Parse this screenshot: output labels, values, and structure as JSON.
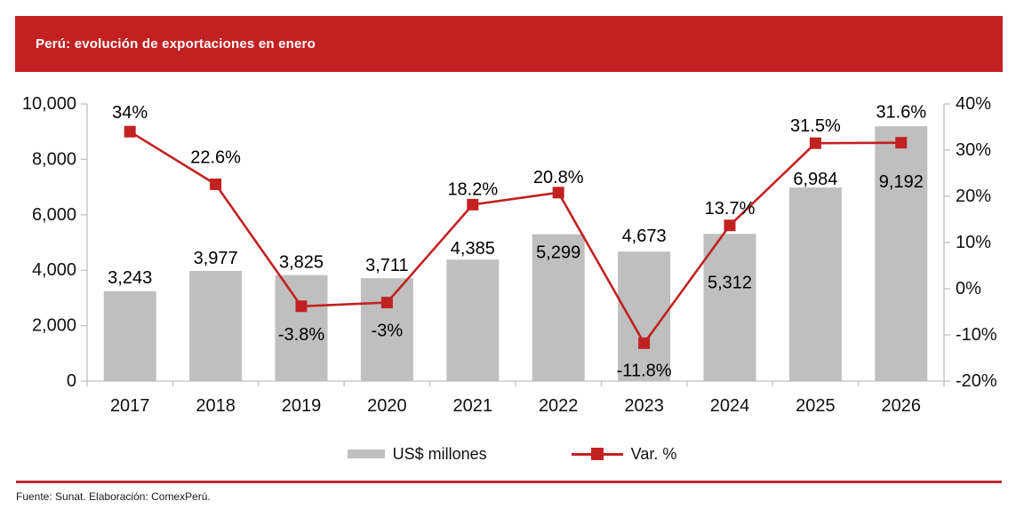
{
  "header": {
    "title": "Perú: evolución de exportaciones en enero"
  },
  "legend": {
    "bars_label": "US$ millones",
    "line_label": "Var. %"
  },
  "footer": {
    "source": "Fuente: Sunat. Elaboración: ComexPerú."
  },
  "colors": {
    "accent_red": "#c22122",
    "footer_rule_red": "#c22b35",
    "bar_gray": "#bfbfbf",
    "axis_gray": "#c0c0c0",
    "text_dark": "#111111"
  },
  "chart_data": {
    "type": "bar",
    "subtype": "bar-line-combo",
    "title": "Perú: evolución de exportaciones en enero",
    "categories": [
      "2017",
      "2018",
      "2019",
      "2020",
      "2021",
      "2022",
      "2023",
      "2024",
      "2025",
      "2026"
    ],
    "series": [
      {
        "name": "US$ millones",
        "type": "bar",
        "axis": "left",
        "values": [
          3243,
          3977,
          3825,
          3711,
          4385,
          5299,
          4673,
          5312,
          6984,
          9192
        ],
        "labels": [
          "3,243",
          "3,977",
          "3,825",
          "3,711",
          "4,385",
          "5,299",
          "4,673",
          "5,312",
          "6,984",
          "9,192"
        ]
      },
      {
        "name": "Var. %",
        "type": "line",
        "axis": "right",
        "values": [
          34,
          22.6,
          -3.8,
          -3,
          18.2,
          20.8,
          -11.8,
          13.7,
          31.5,
          31.6
        ],
        "labels": [
          "34%",
          "22.6%",
          "-3.8%",
          "-3%",
          "18.2%",
          "20.8%",
          "-11.8%",
          "13.7%",
          "31.5%",
          "31.6%"
        ]
      }
    ],
    "left_axis": {
      "min": 0,
      "max": 10000,
      "step": 2000,
      "tick_labels": [
        "0",
        "2,000",
        "4,000",
        "6,000",
        "8,000",
        "10,000"
      ]
    },
    "right_axis": {
      "min": -20,
      "max": 40,
      "step": 10,
      "tick_labels": [
        "-20%",
        "-10%",
        "0%",
        "10%",
        "20%",
        "30%",
        "40%"
      ]
    },
    "grid": false,
    "legend_position": "bottom",
    "layout_hints": {
      "bar_label_dy": [
        -15,
        -14,
        -14,
        -14,
        -12,
        21,
        -17,
        55,
        -9,
        63
      ],
      "pct_label_dy": [
        -21,
        -30,
        32,
        32,
        -17,
        -17,
        31,
        -19,
        -19,
        -34
      ]
    }
  }
}
